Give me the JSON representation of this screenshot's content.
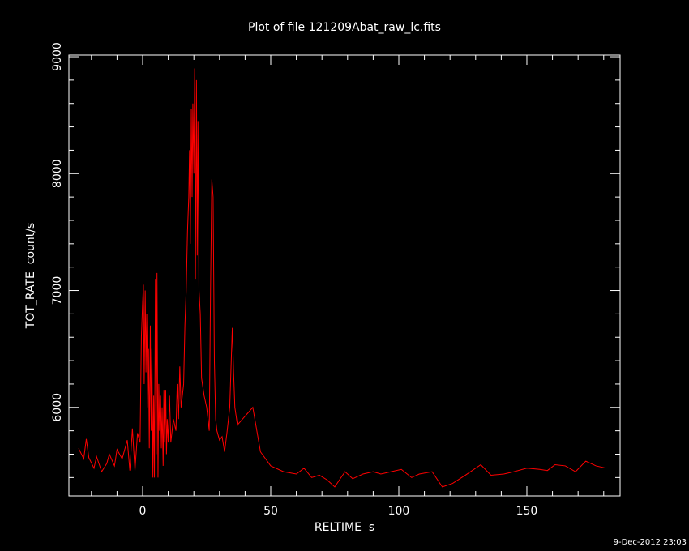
{
  "chart_data": {
    "type": "line",
    "title": "Plot of file 121209Abat_raw_lc.fits",
    "xlabel": "RELTIME  s",
    "ylabel": "TOT_RATE  count/s",
    "footer": "9-Dec-2012 23:03",
    "color": "#ff0000",
    "x": [
      -25,
      -23,
      -22,
      -21,
      -19,
      -18,
      -16,
      -14,
      -13,
      -11,
      -10,
      -8,
      -6,
      -5,
      -4,
      -3,
      -2,
      -1,
      -0.5,
      0,
      0.3,
      0.6,
      1,
      1.3,
      1.6,
      2,
      2.3,
      2.6,
      3,
      3.3,
      3.6,
      4,
      4.3,
      4.6,
      5,
      5.3,
      5.6,
      6,
      6.3,
      6.6,
      7,
      7.3,
      7.6,
      8,
      8.3,
      8.6,
      9,
      9.3,
      9.6,
      10,
      10.5,
      11,
      12,
      13,
      13.5,
      14,
      14.5,
      15,
      16,
      16.5,
      17,
      17.5,
      18,
      18.3,
      18.6,
      19,
      19.3,
      19.6,
      20,
      20.3,
      20.6,
      21,
      21.3,
      21.6,
      22,
      22.5,
      23,
      24,
      25,
      26,
      26.5,
      27,
      27.5,
      28,
      28.5,
      29,
      30,
      31,
      32,
      33,
      34,
      35,
      35.5,
      36,
      37,
      39,
      41,
      43,
      46,
      50,
      55,
      60,
      63,
      66,
      69,
      72,
      75,
      79,
      82,
      86,
      90,
      93,
      97,
      101,
      105,
      108,
      113,
      117,
      121,
      126,
      132,
      136,
      141,
      145,
      150,
      155,
      158,
      161,
      165,
      169,
      173,
      177,
      181
    ],
    "values": [
      5650,
      5560,
      5730,
      5570,
      5480,
      5580,
      5450,
      5520,
      5600,
      5500,
      5640,
      5560,
      5720,
      5460,
      5820,
      5460,
      5780,
      5700,
      6600,
      6900,
      7050,
      6200,
      7000,
      6300,
      6800,
      6000,
      6500,
      5650,
      6700,
      5800,
      6500,
      5400,
      6100,
      5400,
      7100,
      5600,
      7150,
      5400,
      6200,
      5800,
      6100,
      5650,
      6000,
      5500,
      6150,
      5700,
      6150,
      5600,
      5900,
      5700,
      6100,
      5700,
      5900,
      5800,
      6200,
      5900,
      6350,
      6000,
      6200,
      6700,
      7000,
      7500,
      7800,
      8200,
      7400,
      8550,
      7800,
      8600,
      8000,
      8900,
      7100,
      8800,
      7300,
      8450,
      7000,
      6800,
      6250,
      6100,
      6000,
      5800,
      7000,
      7950,
      7800,
      6400,
      5900,
      5800,
      5720,
      5750,
      5620,
      5800,
      6000,
      6680,
      6300,
      6000,
      5850,
      5900,
      5950,
      6000,
      5620,
      5500,
      5450,
      5430,
      5480,
      5400,
      5420,
      5380,
      5320,
      5450,
      5390,
      5430,
      5450,
      5430,
      5450,
      5470,
      5400,
      5430,
      5450,
      5320,
      5350,
      5420,
      5510,
      5420,
      5430,
      5450,
      5480,
      5470,
      5460,
      5510,
      5500,
      5450,
      5540,
      5500,
      5480
    ],
    "xlim": [
      -28.8,
      186.4
    ],
    "ylim": [
      5243,
      9014
    ],
    "xticks": [
      0,
      50,
      100,
      150
    ],
    "yticks": [
      6000,
      7000,
      8000,
      9000
    ],
    "xminorticks": [
      -20,
      -10,
      10,
      20,
      30,
      40,
      60,
      70,
      80,
      90,
      110,
      120,
      130,
      140,
      160,
      170,
      180
    ],
    "yminorticks": [
      5400,
      5600,
      5800,
      6200,
      6400,
      6600,
      6800,
      7200,
      7400,
      7600,
      7800,
      8200,
      8400,
      8600,
      8800
    ]
  }
}
